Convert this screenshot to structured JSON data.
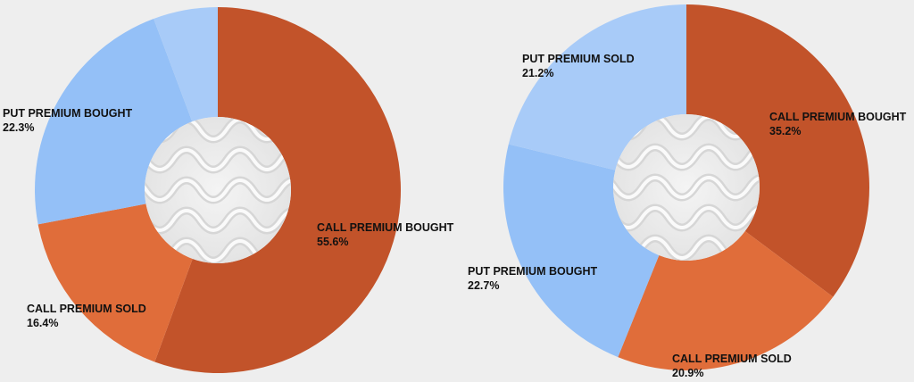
{
  "colors": {
    "call_premium_bought": "#c2532a",
    "call_premium_sold": "#e06d3a",
    "put_premium_bought": "#94c0f7",
    "put_premium_sold": "#a8cbf8",
    "center_hole": "#eeeeee",
    "background": "#eeeeee"
  },
  "chart_data": [
    {
      "type": "pie",
      "variant": "donut",
      "slices": [
        {
          "label": "CALL PREMIUM BOUGHT",
          "value": 55.6,
          "value_text": "55.6%",
          "color": "#c2532a"
        },
        {
          "label": "CALL PREMIUM SOLD",
          "value": 16.4,
          "value_text": "16.4%",
          "color": "#e06d3a"
        },
        {
          "label": "PUT PREMIUM BOUGHT",
          "value": 22.3,
          "value_text": "22.3%",
          "color": "#94c0f7"
        },
        {
          "label": "",
          "value": 5.7,
          "value_text": "",
          "color": "#a8cbf8"
        }
      ],
      "legend": "none"
    },
    {
      "type": "pie",
      "variant": "donut",
      "slices": [
        {
          "label": "CALL PREMIUM BOUGHT",
          "value": 35.2,
          "value_text": "35.2%",
          "color": "#c2532a"
        },
        {
          "label": "CALL PREMIUM SOLD",
          "value": 20.9,
          "value_text": "20.9%",
          "color": "#e06d3a"
        },
        {
          "label": "PUT PREMIUM BOUGHT",
          "value": 22.7,
          "value_text": "22.7%",
          "color": "#94c0f7"
        },
        {
          "label": "PUT PREMIUM SOLD",
          "value": 21.2,
          "value_text": "21.2%",
          "color": "#a8cbf8"
        }
      ],
      "legend": "none"
    }
  ]
}
